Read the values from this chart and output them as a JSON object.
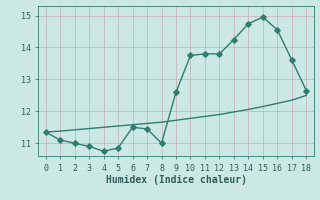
{
  "x": [
    0,
    1,
    2,
    3,
    4,
    5,
    6,
    7,
    8,
    9,
    10,
    11,
    12,
    13,
    14,
    15,
    16,
    17,
    18
  ],
  "y_curve": [
    11.35,
    11.1,
    11.0,
    10.9,
    10.75,
    10.85,
    11.5,
    11.45,
    11.0,
    12.6,
    13.75,
    13.8,
    13.8,
    14.25,
    14.75,
    14.95,
    14.55,
    13.6,
    12.65
  ],
  "y_line": [
    11.35,
    11.38,
    11.42,
    11.46,
    11.5,
    11.54,
    11.58,
    11.62,
    11.66,
    11.72,
    11.78,
    11.84,
    11.9,
    11.98,
    12.06,
    12.15,
    12.25,
    12.35,
    12.5
  ],
  "xlim": [
    -0.5,
    18.5
  ],
  "ylim": [
    10.6,
    15.3
  ],
  "yticks": [
    11,
    12,
    13,
    14,
    15
  ],
  "xticks": [
    0,
    1,
    2,
    3,
    4,
    5,
    6,
    7,
    8,
    9,
    10,
    11,
    12,
    13,
    14,
    15,
    16,
    17,
    18
  ],
  "xlabel": "Humidex (Indice chaleur)",
  "line_color": "#2e7d6e",
  "bg_color": "#cce8e4",
  "grid_color_major": "#b8d8d4",
  "grid_color_minor": "#d0e8e4",
  "font_color": "#2e5f58",
  "tick_fontsize": 6,
  "label_fontsize": 7,
  "marker_size": 2.8,
  "line_width": 1.0
}
